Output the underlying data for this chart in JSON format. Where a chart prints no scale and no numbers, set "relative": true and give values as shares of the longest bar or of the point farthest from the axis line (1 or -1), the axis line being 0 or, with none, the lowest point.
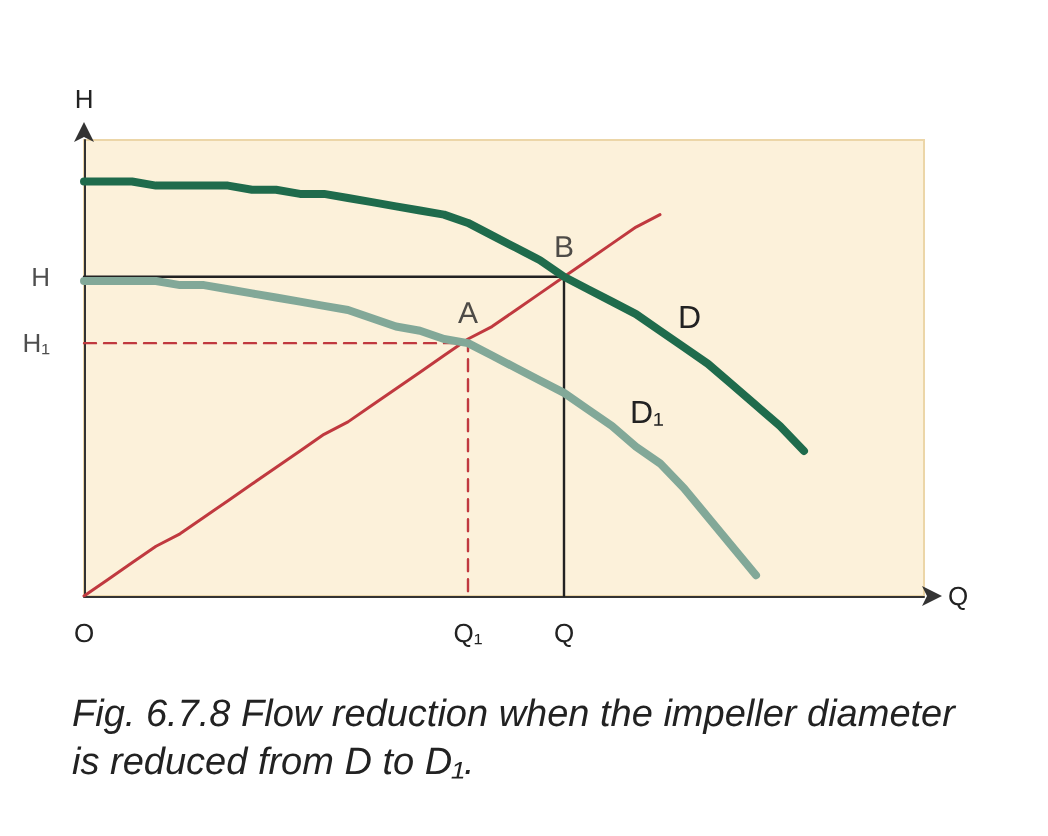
{
  "chart_data": {
    "type": "line",
    "title": "Fig. 6.7.8 Flow reduction when the impeller diameter is reduced from D to D₁.",
    "xlabel": "Q",
    "ylabel": "H",
    "relative": true,
    "categories": [
      "O",
      null,
      null,
      null,
      null,
      null,
      null,
      null,
      null,
      null,
      null,
      null,
      null,
      null,
      null,
      null,
      "Q₁",
      null,
      null,
      null,
      "Q",
      null,
      null,
      null,
      null,
      null,
      null,
      null,
      null,
      null,
      null,
      null,
      null,
      null,
      null,
      null
    ],
    "grid": false,
    "legend": false,
    "marker": "none",
    "series": [
      {
        "name": "D",
        "color": "#1f6b4c",
        "values": [
          1,
          1,
          1,
          0.99,
          0.99,
          0.99,
          0.99,
          0.98,
          0.98,
          0.97,
          0.97,
          0.96,
          0.95,
          0.94,
          0.93,
          0.92,
          0.9,
          0.87,
          0.84,
          0.81,
          0.77,
          0.74,
          0.71,
          0.68,
          0.64,
          0.6,
          0.56,
          0.51,
          0.46,
          0.41,
          0.35,
          null,
          null,
          null,
          null,
          null
        ]
      },
      {
        "name": "D₁",
        "color": "#82a898",
        "values": [
          0.76,
          0.76,
          0.76,
          0.76,
          0.75,
          0.75,
          0.74,
          0.73,
          0.72,
          0.71,
          0.7,
          0.69,
          0.67,
          0.65,
          0.64,
          0.62,
          0.61,
          0.58,
          0.55,
          0.52,
          0.49,
          0.45,
          0.41,
          0.36,
          0.32,
          0.26,
          0.19,
          0.12,
          0.05,
          null,
          null,
          null,
          null,
          null,
          null,
          null
        ]
      },
      {
        "color": "#c0393f",
        "values": [
          0,
          0.04,
          0.08,
          0.12,
          0.15,
          0.19,
          0.23,
          0.27,
          0.31,
          0.35,
          0.39,
          0.42,
          0.46,
          0.5,
          0.54,
          0.58,
          0.62,
          0.65,
          0.69,
          0.73,
          0.77,
          0.81,
          0.85,
          0.89,
          0.92,
          null,
          null,
          null,
          null,
          null,
          null,
          null,
          null,
          null,
          null,
          null
        ]
      },
      {
        "color": "#222222",
        "x": [
          "O",
          "Q",
          "Q"
        ],
        "values": [
          0.77,
          0.77,
          0
        ]
      },
      {
        "color": "#c0393f",
        "line_style": "dashed",
        "x": [
          "O",
          "Q₁",
          "Q₁"
        ],
        "values": [
          0.61,
          0.61,
          0
        ]
      }
    ],
    "annotations": [
      {
        "text": "A",
        "x": "Q₁",
        "y": 0.61
      },
      {
        "text": "B",
        "x": "Q",
        "y": 0.77
      },
      {
        "text": "H",
        "x": "O",
        "y": 0.77
      },
      {
        "text": "H₁",
        "x": "O",
        "y": 0.61
      }
    ]
  }
}
